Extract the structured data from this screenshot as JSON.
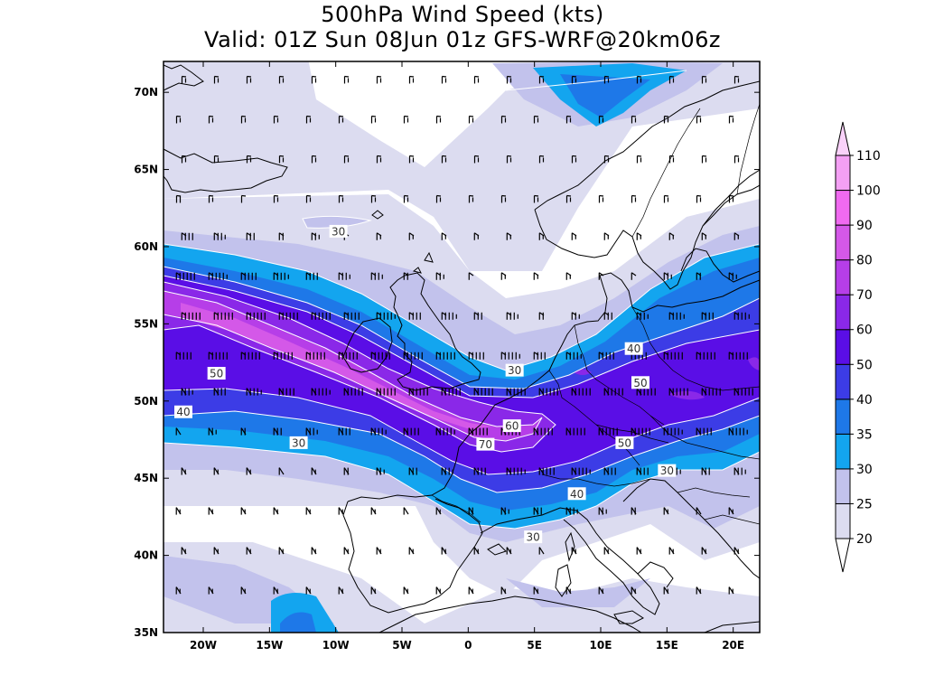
{
  "title": "500hPa Wind Speed (kts)",
  "subtitle": "Valid: 01Z Sun 08Jun 01z GFS-WRF@20km06z",
  "map": {
    "lon_range": [
      -23,
      22
    ],
    "lat_range": [
      35,
      72
    ],
    "lon_ticks": [
      {
        "value": -20,
        "label": "20W"
      },
      {
        "value": -15,
        "label": "15W"
      },
      {
        "value": -10,
        "label": "10W"
      },
      {
        "value": -5,
        "label": "5W"
      },
      {
        "value": 0,
        "label": "0"
      },
      {
        "value": 5,
        "label": "5E"
      },
      {
        "value": 10,
        "label": "10E"
      },
      {
        "value": 15,
        "label": "15E"
      },
      {
        "value": 20,
        "label": "20E"
      }
    ],
    "lat_ticks": [
      {
        "value": 70,
        "label": "70N"
      },
      {
        "value": 65,
        "label": "65N"
      },
      {
        "value": 60,
        "label": "60N"
      },
      {
        "value": 55,
        "label": "55N"
      },
      {
        "value": 50,
        "label": "50N"
      },
      {
        "value": 45,
        "label": "45N"
      },
      {
        "value": 40,
        "label": "40N"
      },
      {
        "value": 35,
        "label": "35N"
      }
    ],
    "contour_labels": [
      {
        "text": "30",
        "lon": -9.8,
        "lat": 61.0
      },
      {
        "text": "50",
        "lon": -19.0,
        "lat": 51.8
      },
      {
        "text": "40",
        "lon": -21.5,
        "lat": 49.3
      },
      {
        "text": "30",
        "lon": -12.8,
        "lat": 47.3
      },
      {
        "text": "30",
        "lon": 3.5,
        "lat": 52.0
      },
      {
        "text": "60",
        "lon": 3.3,
        "lat": 48.4
      },
      {
        "text": "70",
        "lon": 1.3,
        "lat": 47.2
      },
      {
        "text": "40",
        "lon": 12.5,
        "lat": 53.4
      },
      {
        "text": "50",
        "lon": 13.0,
        "lat": 51.2
      },
      {
        "text": "50",
        "lon": 11.8,
        "lat": 47.3
      },
      {
        "text": "30",
        "lon": 15.0,
        "lat": 45.5
      },
      {
        "text": "40",
        "lon": 8.2,
        "lat": 44.0
      },
      {
        "text": "30",
        "lon": 4.9,
        "lat": 41.2
      }
    ]
  },
  "colorbar": {
    "levels": [
      20,
      25,
      30,
      35,
      40,
      50,
      60,
      70,
      80,
      90,
      100,
      110
    ],
    "labels": [
      "20",
      "25",
      "30",
      "35",
      "40",
      "50",
      "60",
      "70",
      "80",
      "90",
      "100",
      "110"
    ],
    "colors": [
      "#dcdcf0",
      "#c2c2ec",
      "#13a5ef",
      "#1e78e8",
      "#3c3ce6",
      "#5a0ee6",
      "#8a28e8",
      "#b63ee8",
      "#d458e8",
      "#f06af0",
      "#f4a0f4",
      "#fad2fa"
    ]
  }
}
